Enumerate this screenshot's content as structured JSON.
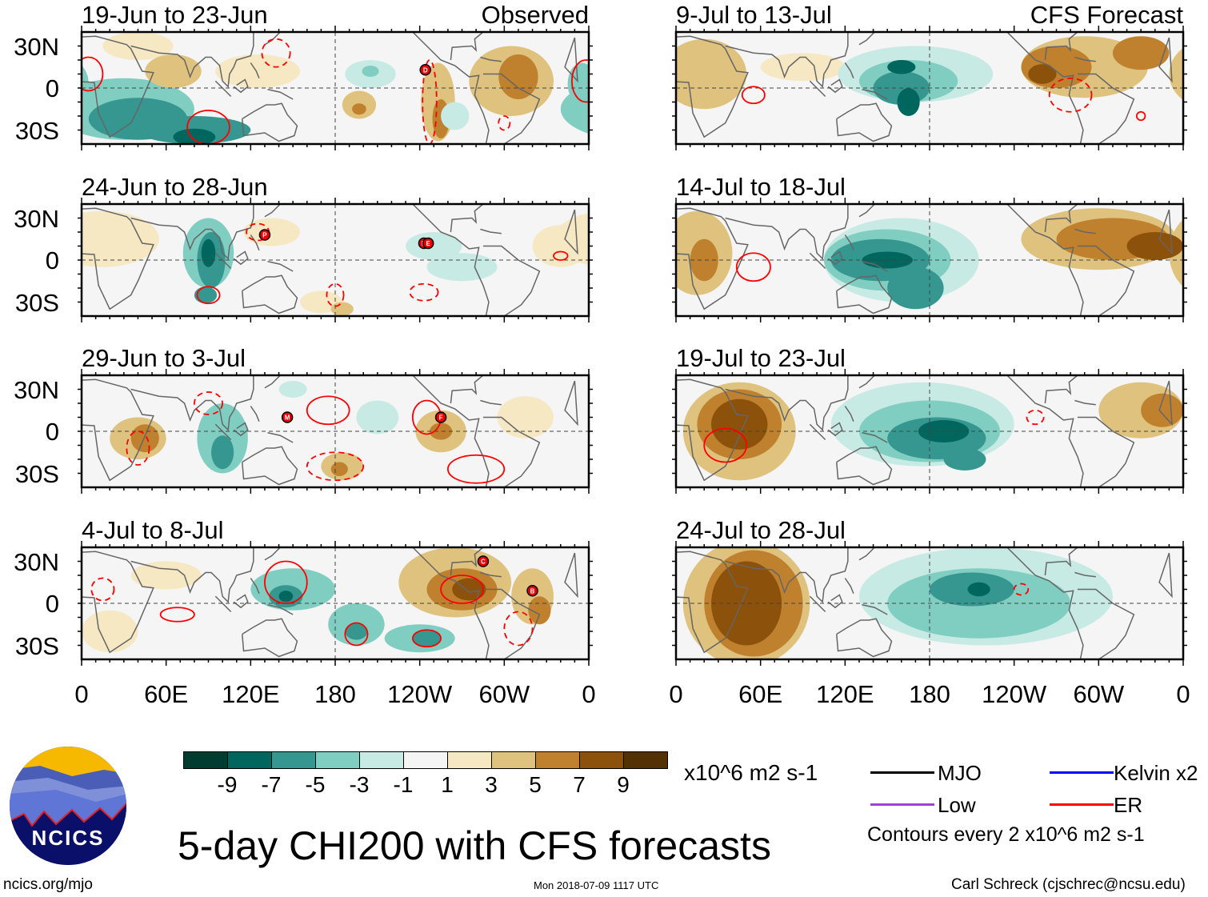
{
  "panels_left": [
    {
      "title": "19-Jun to 23-Jun",
      "tag": "Observed",
      "storms": [
        "D"
      ]
    },
    {
      "title": "24-Jun to 28-Jun",
      "storms": [
        "P",
        "D",
        "E"
      ]
    },
    {
      "title": "29-Jun to 3-Jul",
      "storms": [
        "M",
        "F"
      ]
    },
    {
      "title": "4-Jul to 8-Jul",
      "storms": [
        "C",
        "B"
      ]
    }
  ],
  "panels_right": [
    {
      "title": "9-Jul to 13-Jul",
      "tag": "CFS Forecast"
    },
    {
      "title": "14-Jul to 18-Jul"
    },
    {
      "title": "19-Jul to 23-Jul"
    },
    {
      "title": "24-Jul to 28-Jul"
    }
  ],
  "lat_labels": [
    "30N",
    "0",
    "30S"
  ],
  "lon_labels": [
    "0",
    "60E",
    "120E",
    "180",
    "120W",
    "60W",
    "0"
  ],
  "colorbar": {
    "colors": [
      "#003c30",
      "#01665e",
      "#35978f",
      "#80cdc1",
      "#c7eae5",
      "#f5f5f5",
      "#f6e8c3",
      "#dfc27d",
      "#bf812d",
      "#8c510a",
      "#543005"
    ],
    "labels": [
      "-9",
      "-7",
      "-5",
      "-3",
      "-1",
      "1",
      "3",
      "5",
      "7",
      "9"
    ],
    "units": "x10^6 m2 s-1"
  },
  "legend": {
    "items": [
      {
        "label": "MJO",
        "color": "#000000"
      },
      {
        "label": "Kelvin x2",
        "color": "#0000ff"
      },
      {
        "label": "Low",
        "color": "#a040e0"
      },
      {
        "label": "ER",
        "color": "#ff0000"
      }
    ],
    "contours": "Contours every 2 x10^6 m2 s-1"
  },
  "logo_text": "NCICS",
  "main_title": "5-day CHI200 with CFS forecasts",
  "footer": {
    "url": "ncics.org/mjo",
    "timestamp": "Mon 2018-07-09 1117 UTC",
    "author": "Carl Schreck (cjschrec@ncsu.edu)"
  }
}
